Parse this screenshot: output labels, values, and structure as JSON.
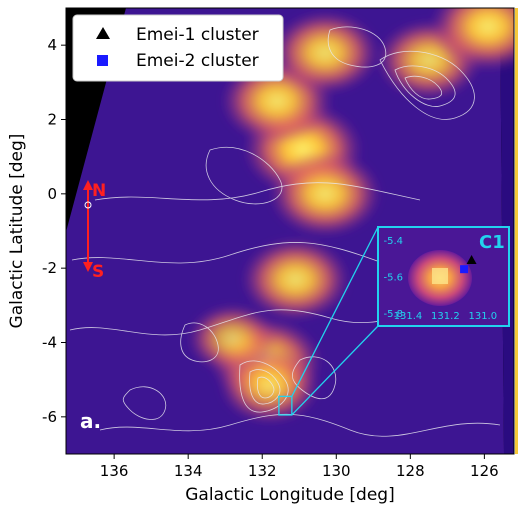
{
  "chart_data": {
    "type": "heatmap",
    "xlabel": "Galactic Longitude [deg]",
    "ylabel": "Galactic Latitude [deg]",
    "xlim": [
      137.3,
      125.2
    ],
    "ylim": [
      -7.0,
      5.0
    ],
    "x_inverted": true,
    "xticks": [
      136,
      134,
      132,
      130,
      128,
      126
    ],
    "yticks": [
      4,
      2,
      0,
      -2,
      -4,
      -6
    ],
    "legend": {
      "placement": "top-left",
      "entries": [
        {
          "label": "Emei-1 cluster",
          "marker": "triangle",
          "color": "#000000"
        },
        {
          "label": "Emei-2 cluster",
          "marker": "square",
          "color": "#1a1aff"
        }
      ]
    },
    "panel_label": "a.",
    "direction_arrow": {
      "top_label": "N",
      "bottom_label": "S",
      "color": "#ff2020"
    },
    "colormap": "plasma",
    "contour_color": "#e8e8f0",
    "emission_peaks": [
      {
        "l": 130.9,
        "b": 1.2,
        "intensity": 1.0
      },
      {
        "l": 131.6,
        "b": 2.5,
        "intensity": 0.9
      },
      {
        "l": 130.3,
        "b": 3.8,
        "intensity": 0.85
      },
      {
        "l": 127.5,
        "b": 3.6,
        "intensity": 0.8
      },
      {
        "l": 125.9,
        "b": 4.5,
        "intensity": 0.95
      },
      {
        "l": 130.3,
        "b": 0.0,
        "intensity": 0.9
      },
      {
        "l": 131.1,
        "b": -2.3,
        "intensity": 0.85
      },
      {
        "l": 131.9,
        "b": -4.5,
        "intensity": 0.9
      },
      {
        "l": 131.8,
        "b": -5.15,
        "intensity": 0.75
      },
      {
        "l": 132.8,
        "b": -3.9,
        "intensity": 0.6
      }
    ],
    "inset": {
      "label": "C1",
      "xticks": [
        131.4,
        131.2,
        131.0
      ],
      "yticks": [
        -5.4,
        -5.6,
        -5.8
      ],
      "xlim": [
        131.56,
        130.86
      ],
      "ylim": [
        -5.87,
        -5.33
      ],
      "zoom_box": {
        "l_min": 131.2,
        "l_max": 131.55,
        "b_min": -5.95,
        "b_max": -5.45
      },
      "emei1_position": {
        "l": 131.06,
        "b": -5.51
      },
      "emei2_position": {
        "l": 131.1,
        "b": -5.56
      },
      "frame_color": "#22d3ee"
    },
    "grid": false
  }
}
